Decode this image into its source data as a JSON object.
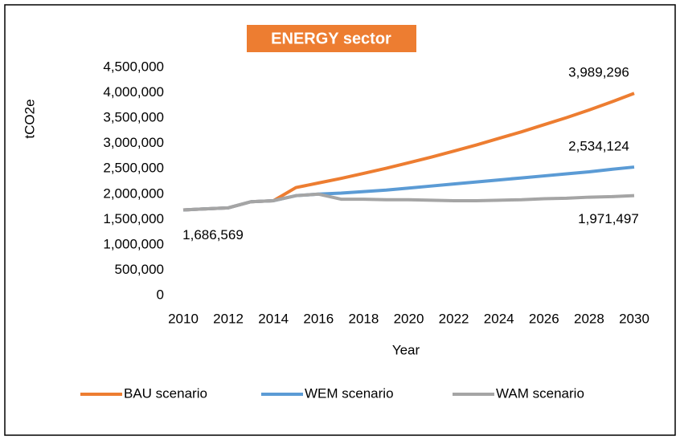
{
  "chart_data": {
    "type": "line",
    "title": "ENERGY sector",
    "x_label": "Year",
    "y_label": "tCO2e",
    "x": [
      2010,
      2011,
      2012,
      2013,
      2014,
      2015,
      2016,
      2017,
      2018,
      2019,
      2020,
      2021,
      2022,
      2023,
      2024,
      2025,
      2026,
      2027,
      2028,
      2029,
      2030
    ],
    "xlim": [
      2010,
      2030
    ],
    "xticks": [
      2010,
      2012,
      2014,
      2016,
      2018,
      2020,
      2022,
      2024,
      2026,
      2028,
      2030
    ],
    "ylim": [
      0,
      4500000
    ],
    "yticks": [
      0,
      {
        "value": 500000,
        "label": "500,000"
      },
      {
        "value": 1000000,
        "label": "1,000,000"
      },
      {
        "value": 1500000,
        "label": "1,500,000"
      },
      {
        "value": 2000000,
        "label": "2,000,000"
      },
      {
        "value": 2500000,
        "label": "2,500,000"
      },
      {
        "value": 3000000,
        "label": "3,000,000"
      },
      {
        "value": 3500000,
        "label": "3,500,000"
      },
      {
        "value": 4000000,
        "label": "4,000,000"
      },
      {
        "value": 4500000,
        "label": "4,500,000"
      }
    ],
    "grid": false,
    "legend": "bottom",
    "series": [
      {
        "name": "BAU scenario",
        "color": "#ED7D31",
        "values": [
          1686569,
          1710000,
          1730000,
          1850000,
          1870000,
          2130000,
          2220000,
          2310000,
          2410000,
          2510000,
          2620000,
          2730000,
          2850000,
          2970000,
          3100000,
          3230000,
          3370000,
          3510000,
          3660000,
          3820000,
          3989296
        ],
        "value_labels": [
          null,
          null,
          null,
          null,
          null,
          null,
          null,
          null,
          null,
          null,
          null,
          null,
          null,
          null,
          null,
          null,
          null,
          null,
          null,
          null,
          "3,989,296"
        ]
      },
      {
        "name": "WEM scenario",
        "color": "#5B9BD5",
        "values": [
          1686569,
          1710000,
          1730000,
          1850000,
          1870000,
          1970000,
          2000000,
          2020000,
          2050000,
          2080000,
          2120000,
          2160000,
          2200000,
          2240000,
          2280000,
          2320000,
          2360000,
          2400000,
          2440000,
          2490000,
          2534124
        ],
        "value_labels": [
          null,
          null,
          null,
          null,
          null,
          null,
          null,
          null,
          null,
          null,
          null,
          null,
          null,
          null,
          null,
          null,
          null,
          null,
          null,
          null,
          "2,534,124"
        ]
      },
      {
        "name": "WAM scenario",
        "color": "#A5A5A5",
        "values": [
          1686569,
          1710000,
          1730000,
          1850000,
          1870000,
          1970000,
          2000000,
          1900000,
          1900000,
          1890000,
          1890000,
          1880000,
          1870000,
          1870000,
          1880000,
          1890000,
          1910000,
          1920000,
          1940000,
          1950000,
          1971497
        ],
        "value_labels": [
          "1,686,569",
          null,
          null,
          null,
          null,
          null,
          null,
          null,
          null,
          null,
          null,
          null,
          null,
          null,
          null,
          null,
          null,
          null,
          null,
          null,
          "1,971,497"
        ]
      }
    ]
  }
}
